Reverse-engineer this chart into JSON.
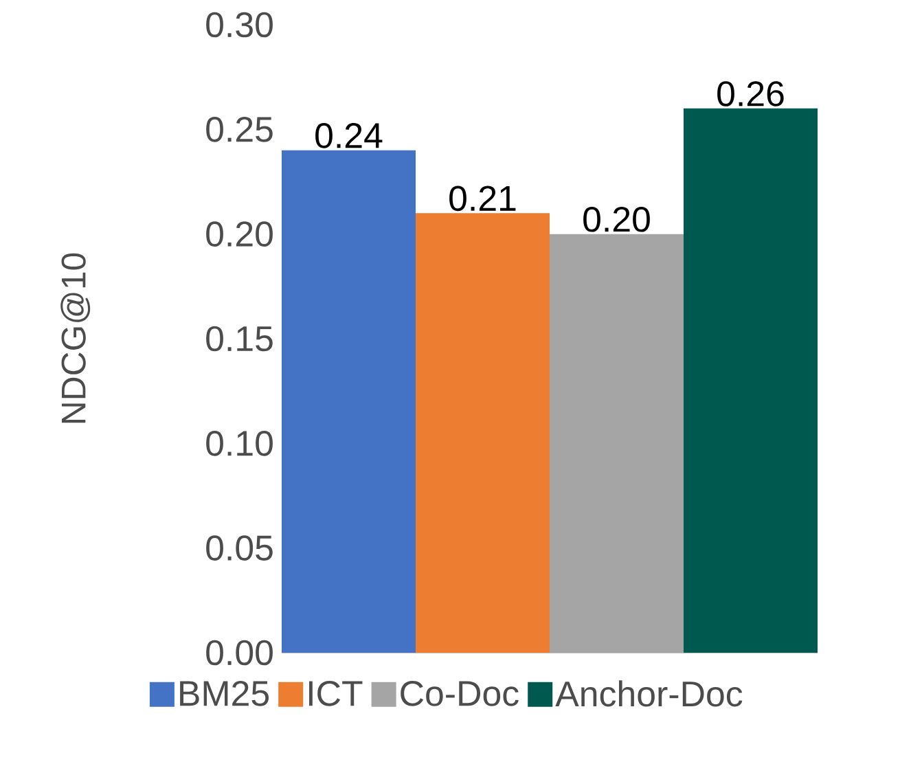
{
  "chart_data": {
    "type": "bar",
    "ylabel": "NDCG@10",
    "categories": [
      null
    ],
    "series": [
      {
        "name": "BM25",
        "color": "#4472c4",
        "values": [
          0.24
        ],
        "value_labels": [
          "0.24"
        ]
      },
      {
        "name": "ICT",
        "color": "#ed7d31",
        "values": [
          0.21
        ],
        "value_labels": [
          "0.21"
        ]
      },
      {
        "name": "Co-Doc",
        "color": "#a5a5a5",
        "values": [
          0.2
        ],
        "value_labels": [
          "0.20"
        ]
      },
      {
        "name": "Anchor-Doc",
        "color": "#00594f",
        "values": [
          0.26
        ],
        "value_labels": [
          "0.26"
        ]
      }
    ],
    "ylim": [
      0,
      0.3
    ],
    "yticks": [
      {
        "value": 0,
        "label": "0.00"
      },
      {
        "value": 0.05,
        "label": "0.05"
      },
      {
        "value": 0.1,
        "label": "0.10"
      },
      {
        "value": 0.15,
        "label": "0.15"
      },
      {
        "value": 0.2,
        "label": "0.20"
      },
      {
        "value": 0.25,
        "label": "0.25"
      },
      {
        "value": 0.3,
        "label": "0.30"
      }
    ],
    "legend": "bottom"
  }
}
